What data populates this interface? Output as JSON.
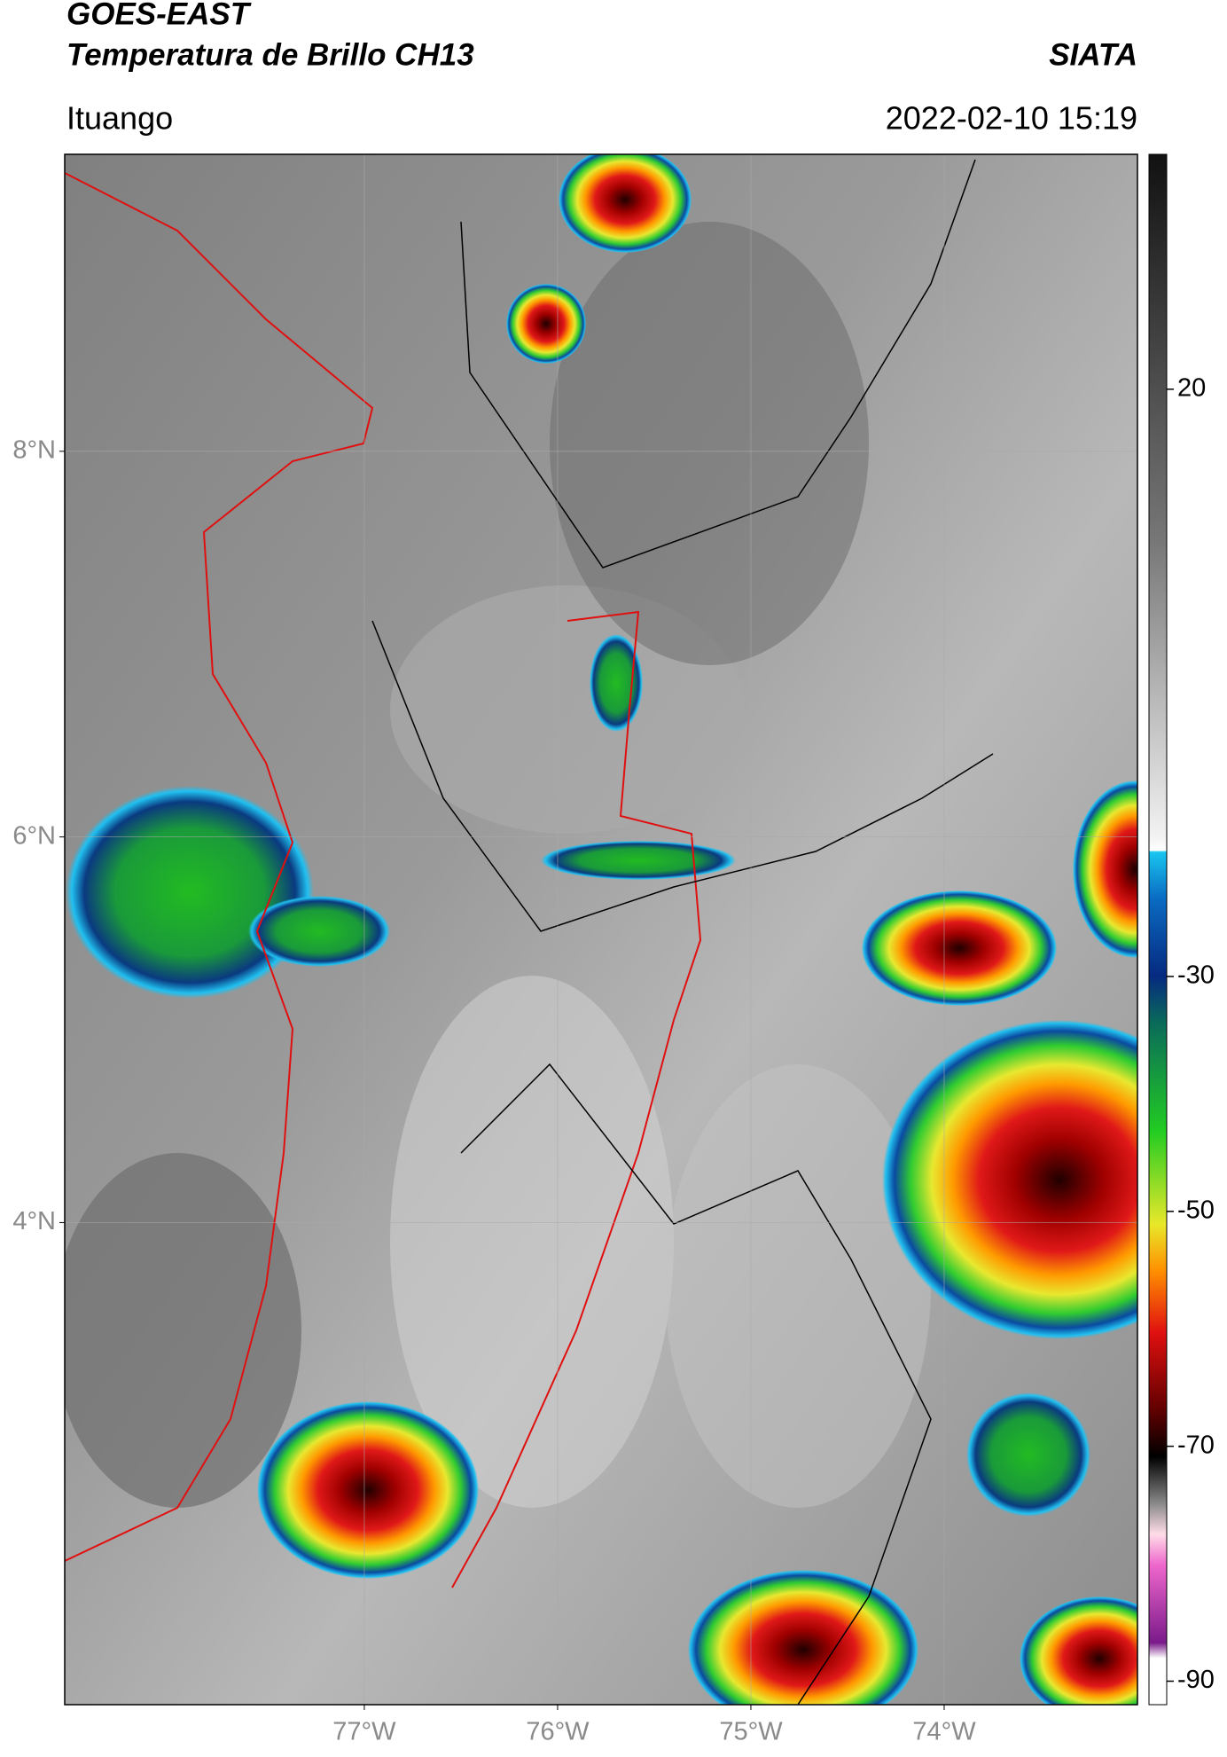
{
  "header": {
    "title_line1": "GOES-EAST",
    "title_line2": "Temperatura de Brillo CH13",
    "source": "SIATA",
    "region": "Ituango",
    "timestamp": "2022-02-10 15:19"
  },
  "map": {
    "lonlim": [
      -78.55,
      -73.0
    ],
    "latlim": [
      1.5,
      9.54
    ],
    "lon_ticks": [
      {
        "value": -77,
        "label": "77°W"
      },
      {
        "value": -76,
        "label": "76°W"
      },
      {
        "value": -75,
        "label": "75°W"
      },
      {
        "value": -74,
        "label": "74°W"
      }
    ],
    "lat_ticks": [
      {
        "value": 8,
        "label": "8°N"
      },
      {
        "value": 6,
        "label": "6°N"
      },
      {
        "value": 4,
        "label": "4°N"
      }
    ],
    "grid": true
  },
  "colorbar": {
    "lim": [
      -92,
      40
    ],
    "ticks": [
      20,
      -30,
      -50,
      -70,
      -90
    ]
  }
}
